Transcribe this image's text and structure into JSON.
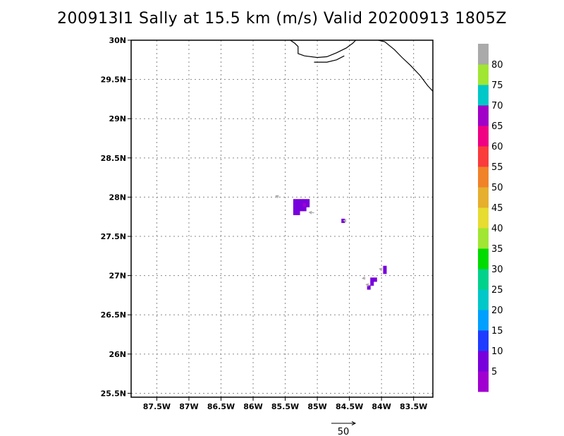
{
  "title": "200913I1 Sally at 15.5 km (m/s) Valid 20200913 1805Z",
  "map": {
    "lon_range": [
      -87.9,
      -83.2
    ],
    "lat_range": [
      25.45,
      30.0
    ],
    "lat_ticks": [
      {
        "value": 30.0,
        "label": "30N"
      },
      {
        "value": 29.5,
        "label": "29.5N"
      },
      {
        "value": 29.0,
        "label": "29N"
      },
      {
        "value": 28.5,
        "label": "28.5N"
      },
      {
        "value": 28.0,
        "label": "28N"
      },
      {
        "value": 27.5,
        "label": "27.5N"
      },
      {
        "value": 27.0,
        "label": "27N"
      },
      {
        "value": 26.5,
        "label": "26.5N"
      },
      {
        "value": 26.0,
        "label": "26N"
      },
      {
        "value": 25.5,
        "label": "25.5N"
      }
    ],
    "lon_ticks": [
      {
        "value": -87.5,
        "label": "87.5W"
      },
      {
        "value": -87.0,
        "label": "87W"
      },
      {
        "value": -86.5,
        "label": "86.5W"
      },
      {
        "value": -86.0,
        "label": "86W"
      },
      {
        "value": -85.5,
        "label": "85.5W"
      },
      {
        "value": -85.0,
        "label": "85W"
      },
      {
        "value": -84.5,
        "label": "84.5W"
      },
      {
        "value": -84.0,
        "label": "84W"
      },
      {
        "value": -83.5,
        "label": "83.5W"
      }
    ],
    "grid": "dotted",
    "coastline": [
      [
        -85.42,
        30.0
      ],
      [
        -85.35,
        29.96
      ],
      [
        -85.3,
        29.92
      ],
      [
        -85.3,
        29.83
      ],
      [
        -85.2,
        29.8
      ],
      [
        -85.0,
        29.78
      ],
      [
        -84.85,
        29.79
      ],
      [
        -84.7,
        29.84
      ],
      [
        -84.55,
        29.9
      ],
      [
        -84.45,
        29.96
      ],
      [
        -84.4,
        30.0
      ]
    ],
    "coastline_island": [
      [
        -85.05,
        29.72
      ],
      [
        -84.85,
        29.72
      ],
      [
        -84.7,
        29.75
      ],
      [
        -84.58,
        29.8
      ]
    ],
    "coastline_east": [
      [
        -84.05,
        30.0
      ],
      [
        -83.95,
        29.98
      ],
      [
        -83.8,
        29.88
      ],
      [
        -83.68,
        29.78
      ],
      [
        -83.55,
        29.68
      ],
      [
        -83.4,
        29.55
      ],
      [
        -83.28,
        29.42
      ],
      [
        -83.2,
        29.35
      ]
    ],
    "wind_cells": [
      {
        "lon": -85.35,
        "lat": 27.95,
        "speed": 8
      },
      {
        "lon": -85.3,
        "lat": 27.95,
        "speed": 6
      },
      {
        "lon": -85.25,
        "lat": 27.95,
        "speed": 7
      },
      {
        "lon": -85.2,
        "lat": 27.95,
        "speed": 5
      },
      {
        "lon": -85.15,
        "lat": 27.95,
        "speed": 8
      },
      {
        "lon": -85.35,
        "lat": 27.9,
        "speed": 9
      },
      {
        "lon": -85.3,
        "lat": 27.9,
        "speed": 7
      },
      {
        "lon": -85.25,
        "lat": 27.9,
        "speed": 6
      },
      {
        "lon": -85.2,
        "lat": 27.9,
        "speed": 4
      },
      {
        "lon": -85.15,
        "lat": 27.9,
        "speed": 6
      },
      {
        "lon": -85.35,
        "lat": 27.85,
        "speed": 7
      },
      {
        "lon": -85.3,
        "lat": 27.85,
        "speed": 6
      },
      {
        "lon": -85.25,
        "lat": 27.85,
        "speed": 5
      },
      {
        "lon": -85.2,
        "lat": 27.85,
        "speed": 7
      },
      {
        "lon": -85.35,
        "lat": 27.8,
        "speed": 8
      },
      {
        "lon": -85.3,
        "lat": 27.8,
        "speed": 6
      },
      {
        "lon": -84.6,
        "lat": 27.7,
        "speed": 7
      },
      {
        "lon": -83.95,
        "lat": 27.1,
        "speed": 7
      },
      {
        "lon": -83.95,
        "lat": 27.05,
        "speed": 6
      },
      {
        "lon": -84.1,
        "lat": 26.95,
        "speed": 8
      },
      {
        "lon": -84.15,
        "lat": 26.95,
        "speed": 7
      },
      {
        "lon": -84.15,
        "lat": 26.9,
        "speed": 6
      },
      {
        "lon": -84.2,
        "lat": 26.85,
        "speed": 9
      }
    ],
    "wind_arrows": [
      {
        "lon": -85.6,
        "lat": 28.0,
        "u": -6,
        "v": 3
      },
      {
        "lon": -85.05,
        "lat": 27.8,
        "u": -10,
        "v": 1
      },
      {
        "lon": -84.55,
        "lat": 27.7,
        "u": -5,
        "v": 0
      },
      {
        "lon": -84.25,
        "lat": 26.97,
        "u": -6,
        "v": -1
      },
      {
        "lon": -84.2,
        "lat": 26.88,
        "u": -5,
        "v": 1
      },
      {
        "lon": -84.0,
        "lat": 27.08,
        "u": -4,
        "v": 1
      }
    ],
    "reference_vector": {
      "label": "50",
      "value": 50
    }
  },
  "colorbar": {
    "labels": [
      "5",
      "10",
      "15",
      "20",
      "25",
      "30",
      "35",
      "40",
      "45",
      "50",
      "55",
      "60",
      "65",
      "70",
      "75",
      "80"
    ],
    "colors": [
      "#a000d0",
      "#7800dc",
      "#1e3cff",
      "#00a0ff",
      "#00c8c8",
      "#00d28c",
      "#00dc00",
      "#a0e632",
      "#e6dc32",
      "#e6af2d",
      "#f08228",
      "#fa3c3c",
      "#f00082",
      "#a000c8",
      "#00c8c8",
      "#a0e632",
      "#aaaaaa"
    ]
  }
}
